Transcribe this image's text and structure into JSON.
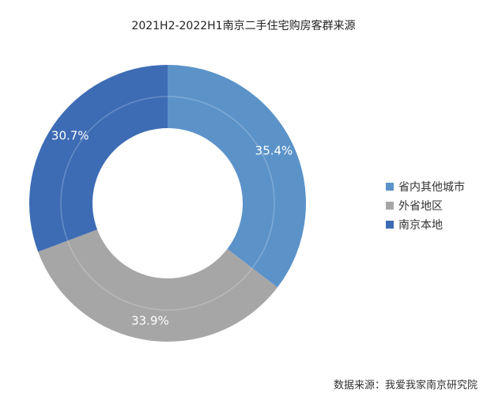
{
  "chart_data": {
    "type": "pie",
    "title": "2021H2-2022H1南京二手住宅购房客群来源",
    "categories": [
      "省内其他城市",
      "外省地区",
      "南京本地"
    ],
    "values": [
      35.4,
      33.9,
      30.7
    ],
    "labels": [
      "35.4%",
      "33.9%",
      "30.7%"
    ],
    "colors": [
      "#5b93c9",
      "#a6a6a6",
      "#3d6cb5"
    ],
    "donut": true,
    "legend_position": "right"
  },
  "source": "数据来源：我爱我家南京研究院"
}
